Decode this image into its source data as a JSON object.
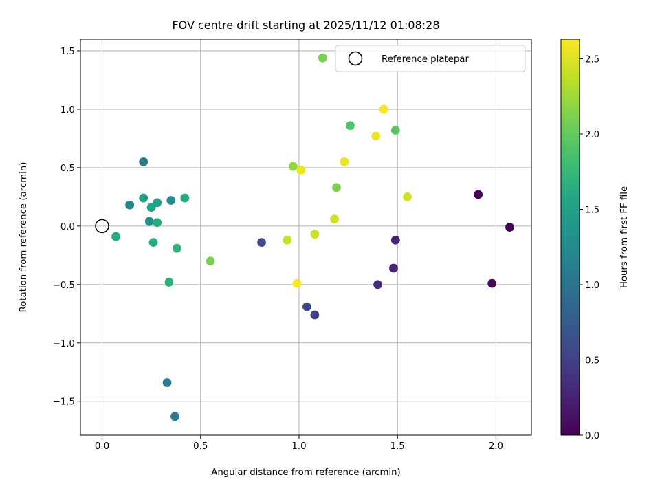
{
  "chart_data": {
    "type": "scatter",
    "title": "FOV centre drift starting at 2025/11/12 01:08:28",
    "xlabel": "Angular distance from reference (arcmin)",
    "ylabel": "Rotation from reference (arcmin)",
    "xlim": [
      -0.11,
      2.18
    ],
    "ylim": [
      -1.79,
      1.6
    ],
    "grid": true,
    "xticks": [
      0.0,
      0.5,
      1.0,
      1.5,
      2.0
    ],
    "xtick_labels": [
      "0.0",
      "0.5",
      "1.0",
      "1.5",
      "2.0"
    ],
    "yticks": [
      1.5,
      1.0,
      0.5,
      0.0,
      -0.5,
      -1.0,
      -1.5
    ],
    "ytick_labels": [
      "1.5",
      "1.0",
      "0.5",
      "0.0",
      "−0.5",
      "−1.0",
      "−1.5"
    ],
    "colorbar": {
      "label": "Hours from first FF file",
      "colormap": "viridis",
      "range": [
        0.0,
        2.63
      ],
      "ticks": [
        0.0,
        0.5,
        1.0,
        1.5,
        2.0,
        2.5
      ],
      "tick_labels": [
        "0.0",
        "0.5",
        "1.0",
        "1.5",
        "2.0",
        "2.5"
      ]
    },
    "legend": {
      "placement": "top-right",
      "entries": [
        {
          "label": "Reference platepar",
          "marker": "open-circle"
        }
      ]
    },
    "reference_point": {
      "x": 0.0,
      "y": 0.0
    },
    "points": [
      {
        "x": 1.91,
        "y": 0.27,
        "hours": 0.02
      },
      {
        "x": 2.07,
        "y": -0.01,
        "hours": 0.03
      },
      {
        "x": 1.98,
        "y": -0.49,
        "hours": 0.05
      },
      {
        "x": 1.49,
        "y": -0.12,
        "hours": 0.25
      },
      {
        "x": 1.48,
        "y": -0.36,
        "hours": 0.28
      },
      {
        "x": 1.4,
        "y": -0.5,
        "hours": 0.33
      },
      {
        "x": 1.08,
        "y": -0.76,
        "hours": 0.5
      },
      {
        "x": 1.04,
        "y": -0.69,
        "hours": 0.55
      },
      {
        "x": 0.81,
        "y": -0.14,
        "hours": 0.6
      },
      {
        "x": 0.37,
        "y": -1.63,
        "hours": 1.05
      },
      {
        "x": 0.33,
        "y": -1.34,
        "hours": 1.1
      },
      {
        "x": 0.21,
        "y": 0.55,
        "hours": 1.1
      },
      {
        "x": 0.14,
        "y": 0.18,
        "hours": 1.2
      },
      {
        "x": 0.35,
        "y": 0.22,
        "hours": 1.25
      },
      {
        "x": 0.24,
        "y": 0.04,
        "hours": 1.3
      },
      {
        "x": 0.21,
        "y": 0.24,
        "hours": 1.45
      },
      {
        "x": 0.25,
        "y": 0.16,
        "hours": 1.55
      },
      {
        "x": 0.28,
        "y": 0.2,
        "hours": 1.5
      },
      {
        "x": 0.28,
        "y": 0.03,
        "hours": 1.6
      },
      {
        "x": 0.42,
        "y": 0.24,
        "hours": 1.6
      },
      {
        "x": 0.07,
        "y": -0.09,
        "hours": 1.62
      },
      {
        "x": 0.26,
        "y": -0.14,
        "hours": 1.65
      },
      {
        "x": 0.38,
        "y": -0.19,
        "hours": 1.68
      },
      {
        "x": 0.34,
        "y": -0.48,
        "hours": 1.68
      },
      {
        "x": 1.26,
        "y": 0.86,
        "hours": 1.9
      },
      {
        "x": 1.49,
        "y": 0.82,
        "hours": 1.95
      },
      {
        "x": 0.55,
        "y": -0.3,
        "hours": 2.1
      },
      {
        "x": 1.19,
        "y": 0.33,
        "hours": 2.12
      },
      {
        "x": 0.97,
        "y": 0.51,
        "hours": 2.2
      },
      {
        "x": 1.12,
        "y": 1.44,
        "hours": 2.1
      },
      {
        "x": 0.94,
        "y": -0.12,
        "hours": 2.4
      },
      {
        "x": 1.08,
        "y": -0.07,
        "hours": 2.42
      },
      {
        "x": 1.18,
        "y": 0.06,
        "hours": 2.45
      },
      {
        "x": 1.55,
        "y": 0.25,
        "hours": 2.45
      },
      {
        "x": 1.01,
        "y": 0.48,
        "hours": 2.55
      },
      {
        "x": 1.23,
        "y": 0.55,
        "hours": 2.55
      },
      {
        "x": 1.39,
        "y": 0.77,
        "hours": 2.55
      },
      {
        "x": 1.43,
        "y": 1.0,
        "hours": 2.63
      },
      {
        "x": 0.99,
        "y": -0.49,
        "hours": 2.63
      }
    ]
  }
}
